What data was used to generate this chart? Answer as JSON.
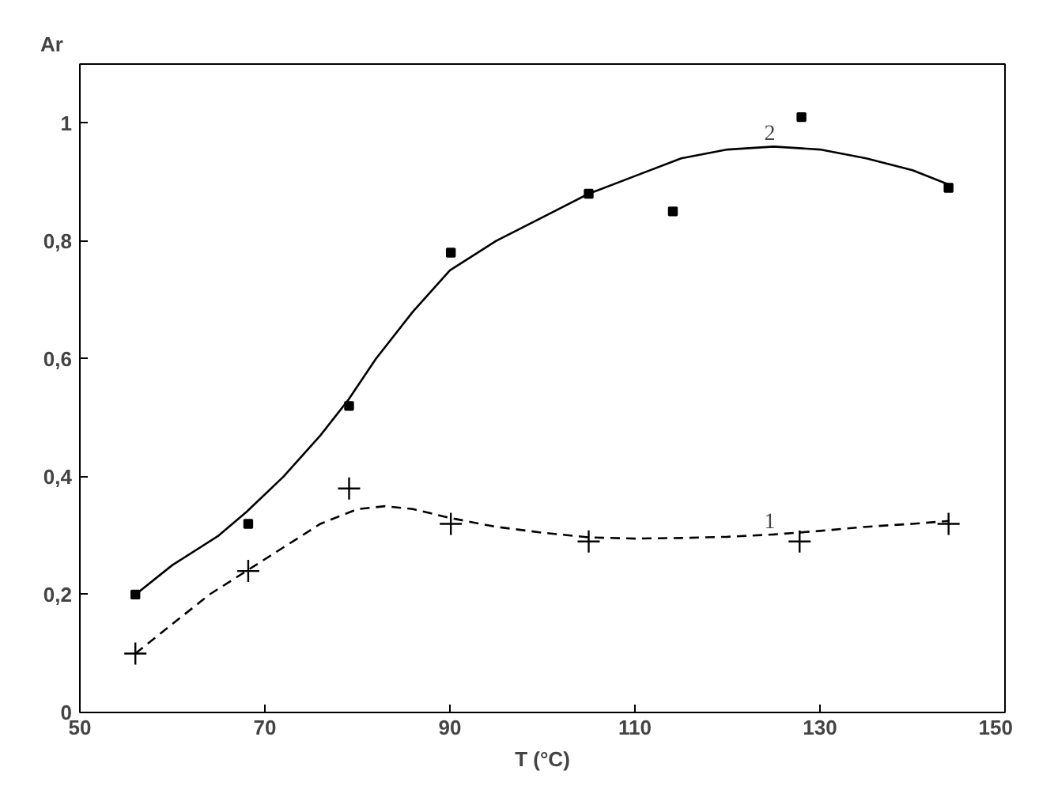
{
  "chart_data": {
    "type": "scatter",
    "xlabel": "T (°C)",
    "ylabel": "Ar",
    "xlim": [
      50,
      150
    ],
    "ylim": [
      0,
      1.1
    ],
    "xticks": [
      50,
      70,
      90,
      110,
      130,
      150
    ],
    "yticks": [
      0,
      {
        "value": 0.2,
        "label": "0,2"
      },
      {
        "value": 0.4,
        "label": "0,4"
      },
      {
        "value": 0.6,
        "label": "0,6"
      },
      {
        "value": 0.8,
        "label": "0,8"
      },
      1
    ],
    "grid": false,
    "series": [
      {
        "marker": "square",
        "color": "#000000",
        "x": [
          56,
          68.2,
          79.1,
          90.1,
          105,
          114.1,
          128,
          143.9
        ],
        "values": [
          0.2,
          0.32,
          0.52,
          0.78,
          0.88,
          0.85,
          1.01,
          0.89
        ]
      },
      {
        "marker": "cross",
        "color": "#000000",
        "x": [
          56,
          68.2,
          79.1,
          90.1,
          105,
          127.8,
          143.9
        ],
        "values": [
          0.1,
          0.24,
          0.38,
          0.32,
          0.29,
          0.29,
          0.32
        ]
      },
      {
        "type": "line",
        "name": "2",
        "line_style": "solid",
        "color": "#000000",
        "x": [
          56,
          60,
          65,
          68,
          72,
          76,
          79,
          82,
          86,
          90,
          95,
          100,
          105,
          110,
          115,
          120,
          125,
          130,
          135,
          140,
          144
        ],
        "values": [
          0.2,
          0.25,
          0.3,
          0.34,
          0.4,
          0.47,
          0.53,
          0.6,
          0.68,
          0.75,
          0.8,
          0.84,
          0.88,
          0.91,
          0.94,
          0.955,
          0.96,
          0.955,
          0.94,
          0.92,
          0.895
        ]
      },
      {
        "type": "line",
        "name": "1",
        "line_style": "dashed",
        "color": "#000000",
        "x": [
          56,
          60,
          64,
          68,
          72,
          76,
          80,
          83,
          86,
          90,
          95,
          100,
          105,
          110,
          115,
          120,
          125,
          130,
          135,
          140,
          144
        ],
        "values": [
          0.1,
          0.15,
          0.2,
          0.24,
          0.28,
          0.32,
          0.345,
          0.35,
          0.345,
          0.33,
          0.315,
          0.305,
          0.297,
          0.295,
          0.296,
          0.298,
          0.302,
          0.308,
          0.315,
          0.32,
          0.325
        ]
      }
    ]
  }
}
